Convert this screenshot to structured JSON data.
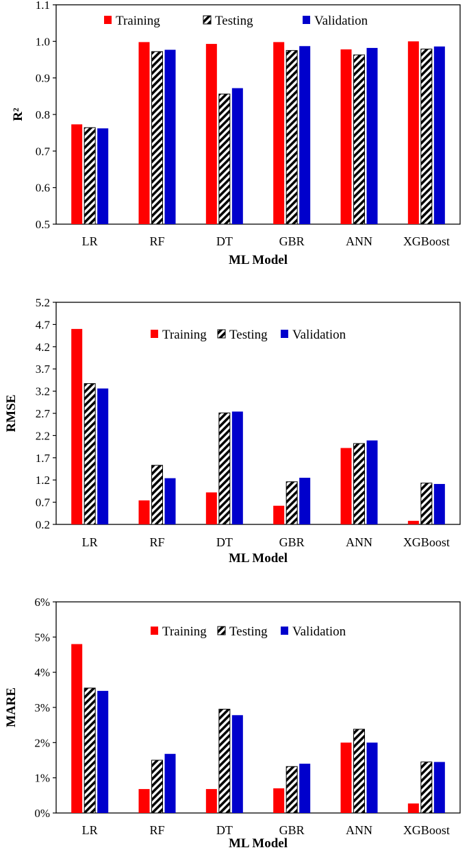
{
  "colors": {
    "training": "#ff0000",
    "validation": "#0000cc",
    "hatch": "#000000"
  },
  "chart_data": [
    {
      "type": "bar",
      "ylabel": "R²",
      "xlabel": "ML Model",
      "ylim": [
        0.5,
        1.1
      ],
      "yticks": [
        0.5,
        0.6,
        0.7,
        0.8,
        0.9,
        1.0,
        1.1
      ],
      "ytick_labels": [
        "0.5",
        "0.6",
        "0.7",
        "0.8",
        "0.9",
        "1.0",
        "1.1"
      ],
      "categories": [
        "LR",
        "RF",
        "DT",
        "GBR",
        "ANN",
        "XGBoost"
      ],
      "legend_position": "top-center",
      "series": [
        {
          "name": "Training",
          "style": "solid-red",
          "values": [
            0.773,
            0.998,
            0.993,
            0.998,
            0.978,
            1.0
          ]
        },
        {
          "name": "Testing",
          "style": "hatched",
          "values": [
            0.764,
            0.972,
            0.856,
            0.975,
            0.963,
            0.979
          ]
        },
        {
          "name": "Validation",
          "style": "solid-blue",
          "values": [
            0.762,
            0.977,
            0.872,
            0.987,
            0.982,
            0.986
          ]
        }
      ]
    },
    {
      "type": "bar",
      "ylabel": "RMSE",
      "xlabel": "ML Model",
      "ylim": [
        0.2,
        5.2
      ],
      "yticks": [
        0.2,
        0.7,
        1.2,
        1.7,
        2.2,
        2.7,
        3.2,
        3.7,
        4.2,
        4.7,
        5.2
      ],
      "ytick_labels": [
        "0.2",
        "0.7",
        "1.2",
        "1.7",
        "2.2",
        "2.7",
        "3.2",
        "3.7",
        "4.2",
        "4.7",
        "5.2"
      ],
      "categories": [
        "LR",
        "RF",
        "DT",
        "GBR",
        "ANN",
        "XGBoost"
      ],
      "legend_position": "top-center",
      "series": [
        {
          "name": "Training",
          "style": "solid-red",
          "values": [
            4.6,
            0.74,
            0.92,
            0.62,
            1.92,
            0.28
          ]
        },
        {
          "name": "Testing",
          "style": "hatched",
          "values": [
            3.37,
            1.53,
            2.71,
            1.16,
            2.02,
            1.13
          ]
        },
        {
          "name": "Validation",
          "style": "solid-blue",
          "values": [
            3.26,
            1.24,
            2.74,
            1.25,
            2.09,
            1.11
          ]
        }
      ]
    },
    {
      "type": "bar",
      "ylabel": "MARE",
      "xlabel": "ML Model",
      "ylim": [
        0,
        6
      ],
      "yticks": [
        0,
        1,
        2,
        3,
        4,
        5,
        6
      ],
      "ytick_labels": [
        "0%",
        "1%",
        "2%",
        "3%",
        "4%",
        "5%",
        "6%"
      ],
      "categories": [
        "LR",
        "RF",
        "DT",
        "GBR",
        "ANN",
        "XGBoost"
      ],
      "legend_position": "top-center",
      "series": [
        {
          "name": "Training",
          "style": "solid-red",
          "values": [
            4.8,
            0.68,
            0.68,
            0.7,
            2.0,
            0.27
          ]
        },
        {
          "name": "Testing",
          "style": "hatched",
          "values": [
            3.55,
            1.5,
            2.95,
            1.32,
            2.38,
            1.45
          ]
        },
        {
          "name": "Validation",
          "style": "solid-blue",
          "values": [
            3.47,
            1.68,
            2.78,
            1.4,
            2.0,
            1.45
          ]
        }
      ]
    }
  ]
}
